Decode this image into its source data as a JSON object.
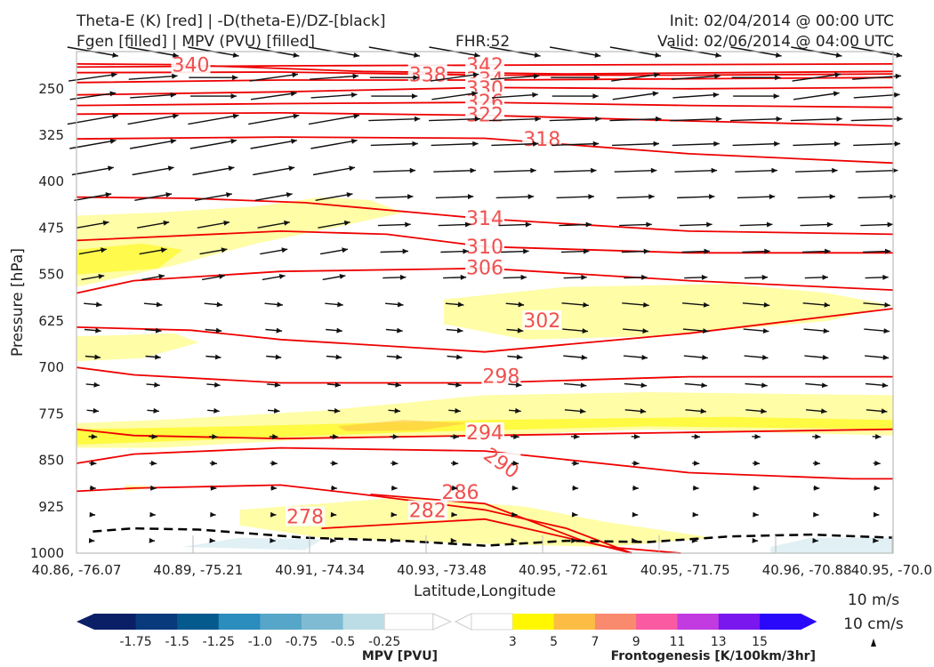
{
  "header": {
    "title_left_1": "Theta-E (K) [red] | -D(theta-E)/DZ-[black]",
    "title_left_2": "Fgen [filled] | MPV (PVU) [filled]",
    "fhr": "FHR:52",
    "init": "Init: 02/04/2014 @ 00:00 UTC",
    "valid": "Valid: 02/06/2014 @ 04:00 UTC"
  },
  "chart_data": {
    "type": "cross-section",
    "xlabel": "Latitude,Longitude",
    "ylabel": "Pressure [hPa]",
    "x_ticks": [
      "40.86, -76.07",
      "40.89, -75.21",
      "40.91, -74.34",
      "40.93, -73.48",
      "40.95, -72.61",
      "40.95, -71.75",
      "40.96, -70.88",
      "40.95, -70.0"
    ],
    "y_ticks": [
      250,
      325,
      400,
      475,
      550,
      625,
      700,
      775,
      850,
      925,
      1000
    ],
    "ylim": [
      1000,
      190
    ],
    "theta_e_contours": [
      {
        "label": "342",
        "level": 342,
        "points": [
          [
            0,
            215
          ],
          [
            0.25,
            213
          ],
          [
            0.5,
            212
          ],
          [
            0.75,
            211
          ],
          [
            1,
            210
          ]
        ]
      },
      {
        "label": "340",
        "level": 340,
        "points": [
          [
            0,
            210
          ],
          [
            0.12,
            211
          ],
          [
            0.35,
            222
          ],
          [
            0.6,
            226
          ],
          [
            0.8,
            224
          ],
          [
            1,
            222
          ]
        ]
      },
      {
        "label": "338",
        "level": 338,
        "points": [
          [
            0,
            224
          ],
          [
            0.25,
            223
          ],
          [
            0.5,
            228
          ],
          [
            0.75,
            228
          ],
          [
            1,
            226
          ]
        ]
      },
      {
        "label": "334",
        "level": 334,
        "points": [
          [
            0,
            240
          ],
          [
            0.25,
            236
          ],
          [
            0.5,
            236
          ],
          [
            0.75,
            234
          ],
          [
            1,
            232
          ]
        ]
      },
      {
        "label": "330",
        "level": 330,
        "points": [
          [
            0,
            260
          ],
          [
            0.25,
            255
          ],
          [
            0.5,
            248
          ],
          [
            0.75,
            250
          ],
          [
            1,
            248
          ]
        ]
      },
      {
        "label": "326",
        "level": 326,
        "points": [
          [
            0,
            277
          ],
          [
            0.25,
            274
          ],
          [
            0.5,
            272
          ],
          [
            0.75,
            277
          ],
          [
            1,
            280
          ]
        ]
      },
      {
        "label": "322",
        "level": 322,
        "points": [
          [
            0,
            291
          ],
          [
            0.25,
            289
          ],
          [
            0.5,
            293
          ],
          [
            0.75,
            302
          ],
          [
            1,
            310
          ]
        ]
      },
      {
        "label": "318",
        "level": 318,
        "points": [
          [
            0,
            331
          ],
          [
            0.25,
            328
          ],
          [
            0.5,
            330
          ],
          [
            0.75,
            355
          ],
          [
            1,
            370
          ]
        ]
      },
      {
        "label": "314",
        "level": 314,
        "points": [
          [
            0,
            425
          ],
          [
            0.14,
            427
          ],
          [
            0.28,
            434
          ],
          [
            0.5,
            460
          ],
          [
            0.75,
            480
          ],
          [
            1,
            485
          ]
        ]
      },
      {
        "label": "310",
        "level": 310,
        "points": [
          [
            0,
            495
          ],
          [
            0.25,
            480
          ],
          [
            0.38,
            485
          ],
          [
            0.5,
            505
          ],
          [
            0.75,
            515
          ],
          [
            1,
            515
          ]
        ]
      },
      {
        "label": "306",
        "level": 306,
        "points": [
          [
            0,
            580
          ],
          [
            0.07,
            560
          ],
          [
            0.25,
            545
          ],
          [
            0.5,
            540
          ],
          [
            0.75,
            560
          ],
          [
            1,
            575
          ]
        ]
      },
      {
        "label": "302",
        "level": 302,
        "points": [
          [
            0,
            635
          ],
          [
            0.14,
            640
          ],
          [
            0.25,
            655
          ],
          [
            0.5,
            675
          ],
          [
            0.75,
            645
          ],
          [
            1,
            605
          ]
        ]
      },
      {
        "label": "298",
        "level": 298,
        "points": [
          [
            0,
            700
          ],
          [
            0.07,
            712
          ],
          [
            0.25,
            725
          ],
          [
            0.5,
            725
          ],
          [
            0.75,
            715
          ],
          [
            1,
            715
          ]
        ]
      },
      {
        "label": "294",
        "level": 294,
        "points": [
          [
            0,
            800
          ],
          [
            0.07,
            810
          ],
          [
            0.25,
            815
          ],
          [
            0.5,
            810
          ],
          [
            0.75,
            805
          ],
          [
            1,
            800
          ]
        ]
      },
      {
        "label": "290",
        "level": 290,
        "points": [
          [
            0,
            855
          ],
          [
            0.07,
            840
          ],
          [
            0.25,
            830
          ],
          [
            0.5,
            835
          ],
          [
            0.75,
            870
          ],
          [
            0.95,
            880
          ],
          [
            1,
            880
          ]
        ]
      },
      {
        "label": "286",
        "level": 286,
        "points": [
          [
            0,
            900
          ],
          [
            0.07,
            895
          ],
          [
            0.25,
            890
          ],
          [
            0.35,
            905
          ],
          [
            0.5,
            930
          ],
          [
            0.6,
            960
          ],
          [
            0.68,
            1000
          ]
        ]
      },
      {
        "label": "282",
        "level": 282,
        "points": [
          [
            0.36,
            905
          ],
          [
            0.5,
            920
          ],
          [
            0.62,
            980
          ],
          [
            0.68,
            1000
          ]
        ]
      },
      {
        "label": "278",
        "level": 278,
        "points": [
          [
            0.3,
            960
          ],
          [
            0.5,
            945
          ],
          [
            0.65,
            990
          ],
          [
            0.74,
            1000
          ]
        ]
      }
    ],
    "fgen_fill_levels": [
      3,
      5,
      7,
      9,
      11,
      13,
      15
    ],
    "fgen_fill_colors": [
      "#fff800",
      "#fdbd44",
      "#fa8a6e",
      "#fa5aa2",
      "#c23be0",
      "#7a17ef",
      "#2a08fa"
    ],
    "mpv_fill_levels": [
      -1.75,
      -1.5,
      -1.25,
      -1.0,
      -0.75,
      -0.5,
      -0.25
    ],
    "mpv_fill_colors": [
      "#0b1f66",
      "#083a7c",
      "#045a8d",
      "#2b8cbe",
      "#56a6c9",
      "#7fbcd3",
      "#bcdde6"
    ],
    "wind_reference": [
      "10 m/s",
      "10 cm/s"
    ],
    "colorbar_mpv": {
      "label": "MPV [PVU]",
      "ticks": [
        "-1.75",
        "-1.5",
        "-1.25",
        "-1.0",
        "-0.75",
        "-0.5",
        "-0.25"
      ]
    },
    "colorbar_fgen": {
      "label": "Frontogenesis [K/100km/3hr]",
      "ticks": [
        "3",
        "5",
        "7",
        "9",
        "11",
        "13",
        "15"
      ]
    }
  },
  "colors": {
    "theta_e": "#ee0000",
    "theta_e_label": "#f05050",
    "arrows": "#111111",
    "frame": "#bbbbbb"
  }
}
